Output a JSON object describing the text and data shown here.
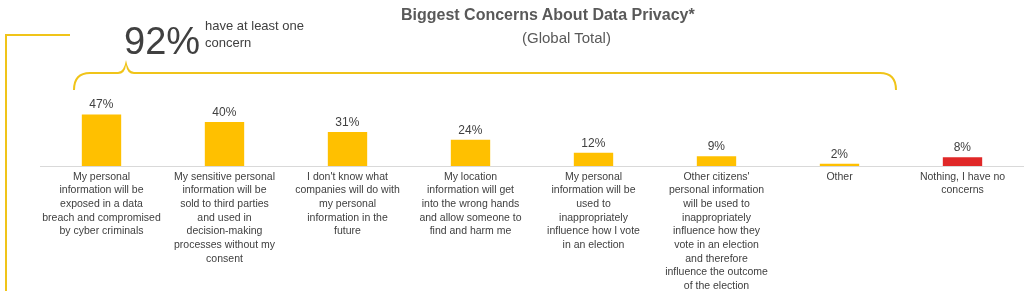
{
  "chart_data": {
    "type": "bar",
    "title": "Biggest Concerns About Data Privacy*",
    "subtitle": "(Global Total)",
    "categories": [
      "My personal information will be exposed in a data breach and compromised by cyber criminals",
      "My sensitive personal information will be sold to third parties and used in decision-making processes without my consent",
      "I don't know what companies will do with my personal information in the future",
      "My location information will get into the wrong hands and allow someone to find and harm me",
      "My personal information will be used to inappropriately influence how I vote in an election",
      "Other citizens' personal information will be used to inappropriately influence how they vote in an election and therefore influence the outcome of the election",
      "Other",
      "Nothing, I have no concerns"
    ],
    "values": [
      47,
      40,
      31,
      24,
      12,
      9,
      2,
      8
    ],
    "colors": [
      "#ffc000",
      "#ffc000",
      "#ffc000",
      "#ffc000",
      "#ffc000",
      "#ffc000",
      "#ffc000",
      "#e02828"
    ],
    "value_labels": [
      "47%",
      "40%",
      "31%",
      "24%",
      "12%",
      "9%",
      "2%",
      "8%"
    ],
    "annotations": [
      "92%",
      "have at least one concern"
    ],
    "grid": false,
    "legend": false
  }
}
